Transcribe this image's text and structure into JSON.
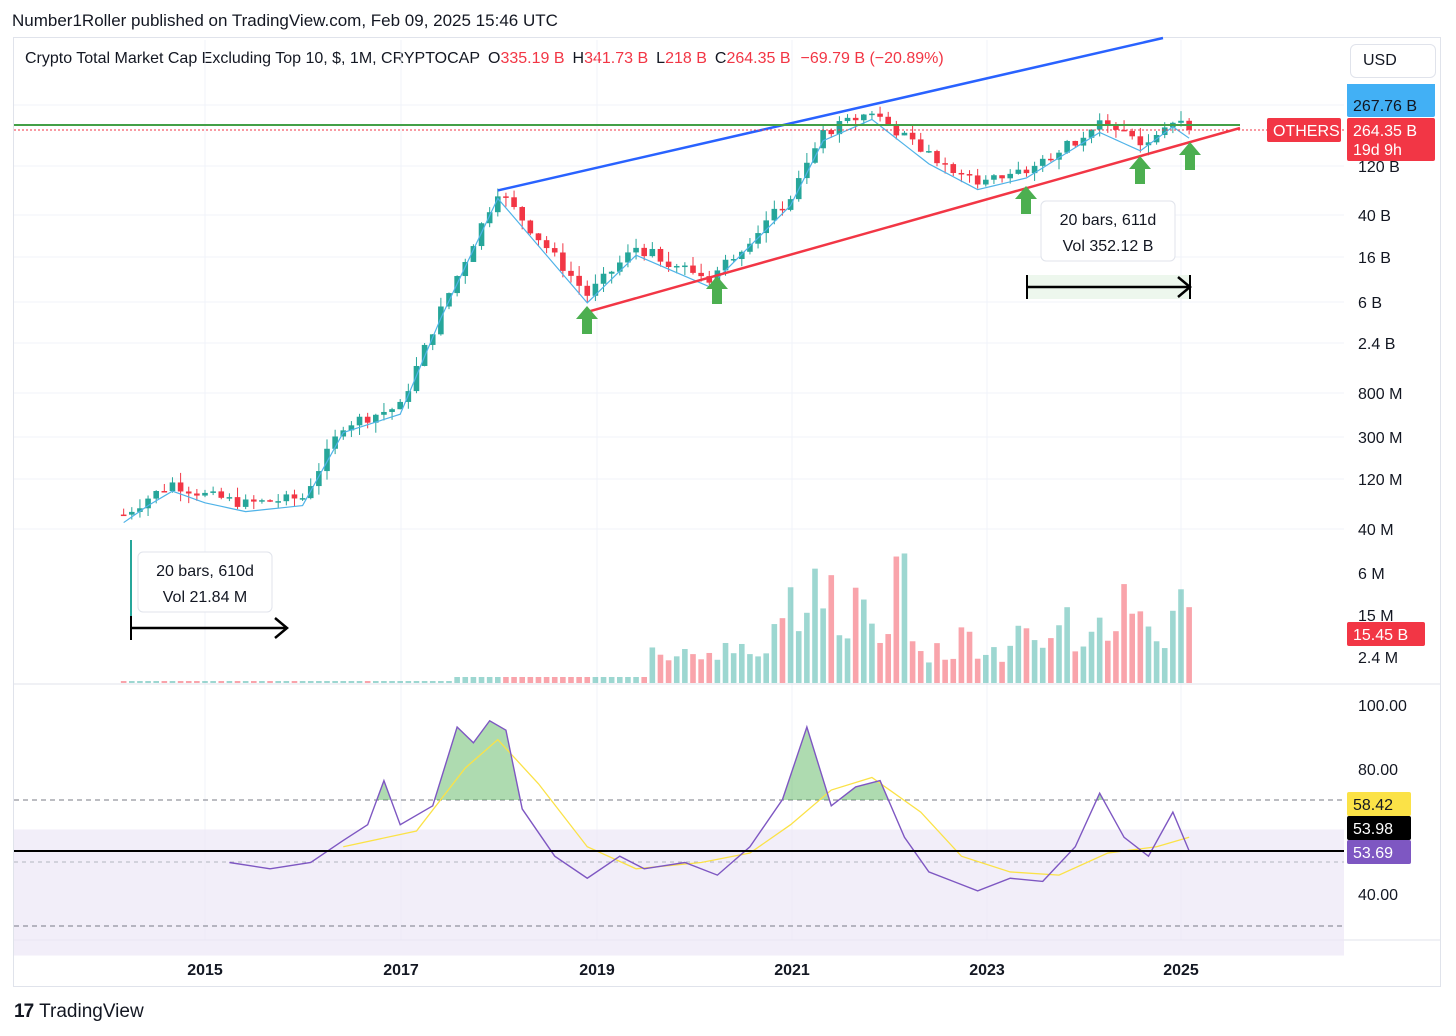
{
  "header": {
    "published": "Number1Roller published on TradingView.com, Feb 09, 2025 15:46 UTC"
  },
  "legend": {
    "symbol": "Crypto Total Market Cap Excluding Top 10, $, 1M, CRYPTOCAP",
    "o_label": "O",
    "o_value": "335.19 B",
    "h_label": "H",
    "h_value": "341.73 B",
    "l_label": "L",
    "l_value": "218 B",
    "c_label": "C",
    "c_value": "264.35 B",
    "change": "−69.79 B (−20.89%)"
  },
  "currency": "USD",
  "footer": {
    "brand": "TradingView",
    "logo_glyph": "17"
  },
  "colors": {
    "up": "#26a69a",
    "down": "#f23645",
    "support": "#f23645",
    "resistance": "#2962ff",
    "level": "#43a047",
    "ma": "#4fb3e8",
    "rsi": "#7e57c2",
    "rsi_ma": "#fbe247",
    "arrow": "#4caf50"
  },
  "labels": {
    "others": "OTHERS",
    "price_top": "267.76 B",
    "price_current": "264.35 B",
    "countdown": "19d 9h",
    "volume_value": "15.45 B",
    "rsi_ma": "58.42",
    "rsi_level": "53.98",
    "rsi_value": "53.69"
  },
  "measure_boxes": [
    {
      "bars": "20 bars, 610d",
      "vol": "Vol 21.84 M"
    },
    {
      "bars": "20 bars, 611d",
      "vol": "Vol 352.12 B"
    }
  ],
  "chart_data": {
    "type": "candlestick",
    "interval": "1M",
    "scale": "log",
    "y_axis_ticks": [
      "40 M",
      "120 M",
      "300 M",
      "800 M",
      "2.4 B",
      "6 B",
      "16 B",
      "40 B",
      "120 B",
      "267.76 B"
    ],
    "x_axis_ticks": [
      "2015",
      "2017",
      "2019",
      "2021",
      "2023",
      "2025"
    ],
    "volume_axis_ticks": [
      "2.4 M",
      "6 M",
      "15 M"
    ],
    "rsi_axis_ticks": [
      "40.00",
      "80.00",
      "100.00"
    ],
    "approx_price_path": [
      {
        "x": "2014-03",
        "y": 0.055
      },
      {
        "x": "2014-06",
        "y": 0.08
      },
      {
        "x": "2014-09",
        "y": 0.11
      },
      {
        "x": "2015-01",
        "y": 0.085
      },
      {
        "x": "2015-06",
        "y": 0.07
      },
      {
        "x": "2016-01",
        "y": 0.08
      },
      {
        "x": "2016-06",
        "y": 0.4
      },
      {
        "x": "2017-01",
        "y": 0.6
      },
      {
        "x": "2017-06",
        "y": 5
      },
      {
        "x": "2018-01",
        "y": 70
      },
      {
        "x": "2018-12",
        "y": 7
      },
      {
        "x": "2019-06",
        "y": 20
      },
      {
        "x": "2020-03",
        "y": 10
      },
      {
        "x": "2021-01",
        "y": 60
      },
      {
        "x": "2021-05",
        "y": 250
      },
      {
        "x": "2021-11",
        "y": 400
      },
      {
        "x": "2022-06",
        "y": 150
      },
      {
        "x": "2022-12",
        "y": 85
      },
      {
        "x": "2023-06",
        "y": 110
      },
      {
        "x": "2024-03",
        "y": 300
      },
      {
        "x": "2024-08",
        "y": 200
      },
      {
        "x": "2024-12",
        "y": 340
      },
      {
        "x": "2025-02",
        "y": 264.35
      }
    ],
    "rsi": {
      "current": 53.69,
      "ma": 58.42,
      "level": 53.98,
      "band": [
        30,
        70
      ]
    },
    "annotations": [
      "support trendline",
      "resistance trendline",
      "horizontal level",
      "5 up arrows",
      "2 date-range measurements"
    ]
  }
}
